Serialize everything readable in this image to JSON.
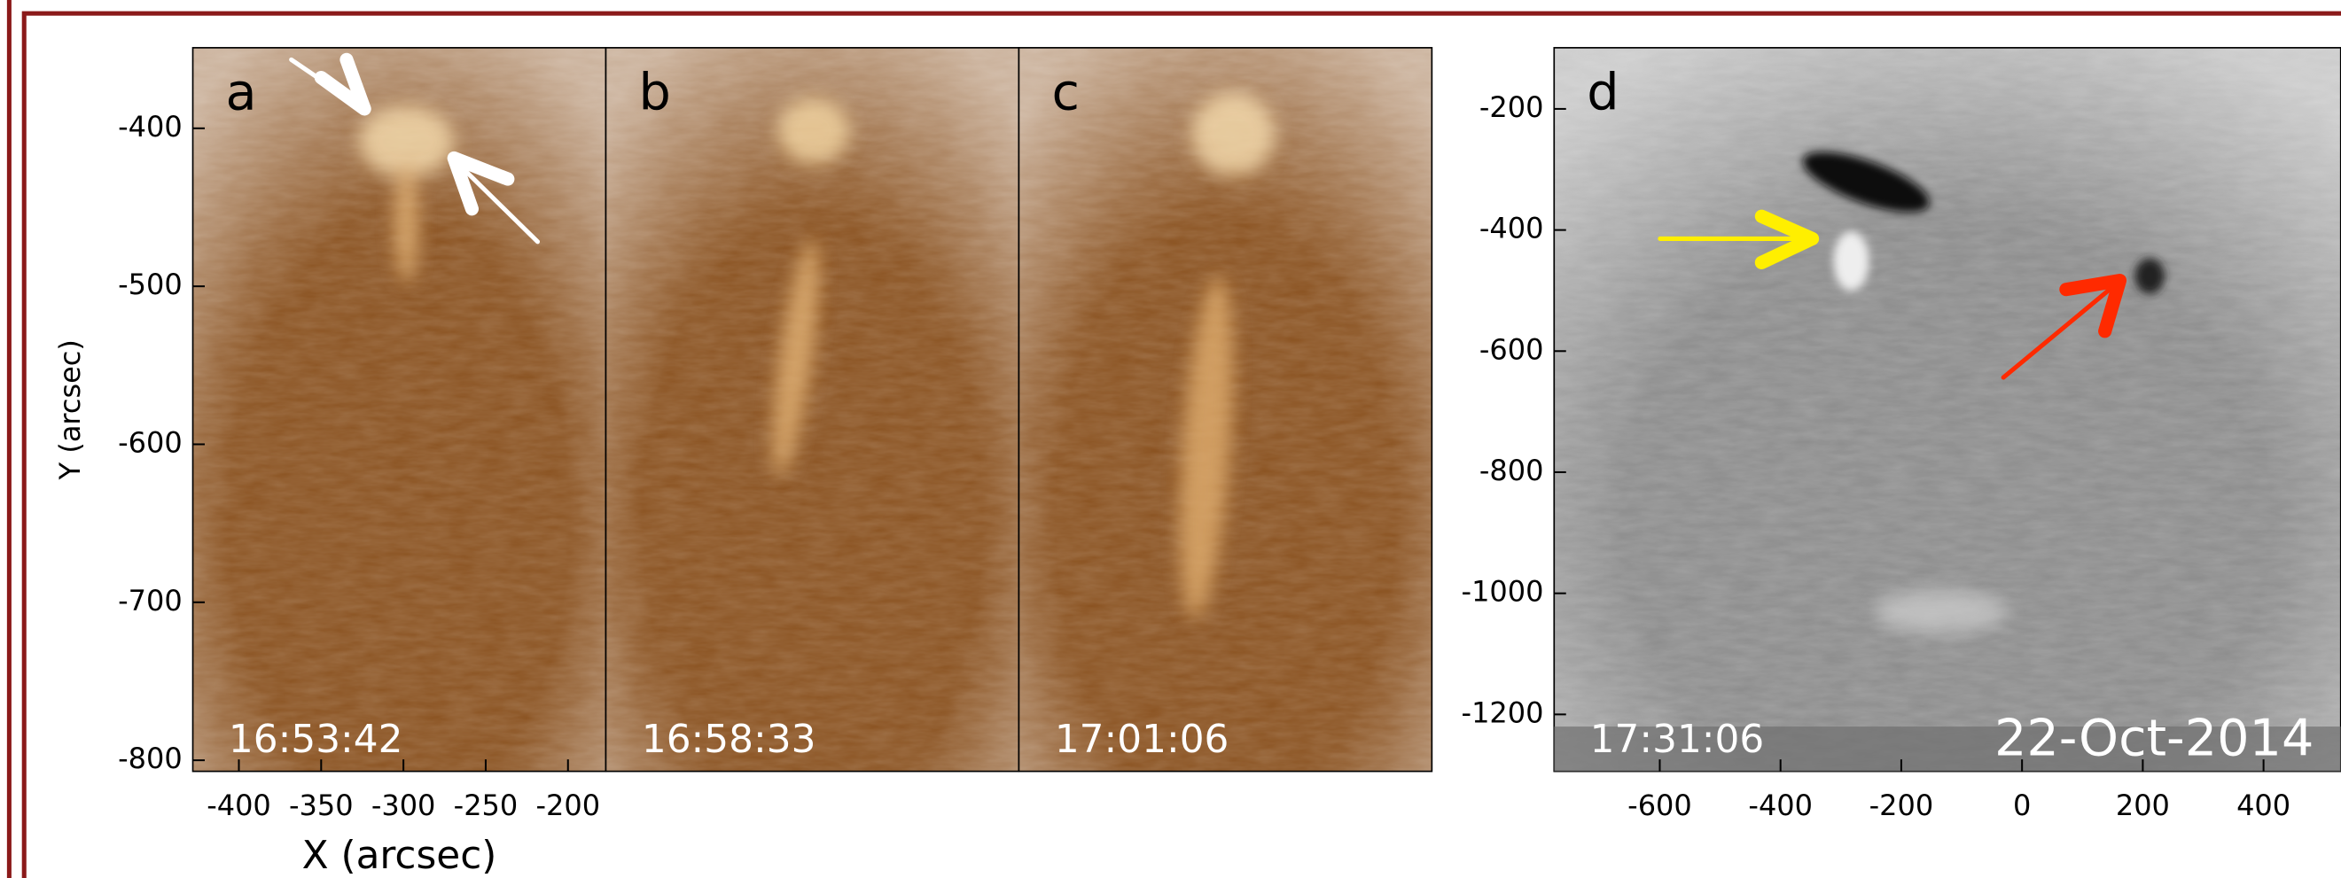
{
  "chart_data": [
    {
      "type": "image",
      "color": "#8a5220",
      "panels": [
        {
          "label": "a",
          "time": "16:53:42"
        },
        {
          "label": "b",
          "time": "16:58:33"
        },
        {
          "label": "c",
          "time": "17:01:06"
        }
      ],
      "xlabel": "X (arcsec)",
      "ylabel": "Y (arcsec)",
      "xlim": [
        -428,
        -177
      ],
      "ylim": [
        -807,
        -349
      ],
      "xticks": [
        -400,
        -350,
        -300,
        -250,
        -200
      ],
      "yticks": [
        -400,
        -500,
        -600,
        -700,
        -800
      ]
    },
    {
      "type": "image",
      "color": "#8c8c8c",
      "panels": [
        {
          "label": "d",
          "time": "17:31:06"
        }
      ],
      "date": "22-Oct-2014",
      "xlim": [
        -775,
        560
      ],
      "ylim": [
        -1294,
        -99
      ],
      "xticks": [
        -600,
        -400,
        -200,
        0,
        200,
        400
      ],
      "yticks": [
        -200,
        -400,
        -600,
        -800,
        -1000,
        -1200
      ]
    }
  ]
}
